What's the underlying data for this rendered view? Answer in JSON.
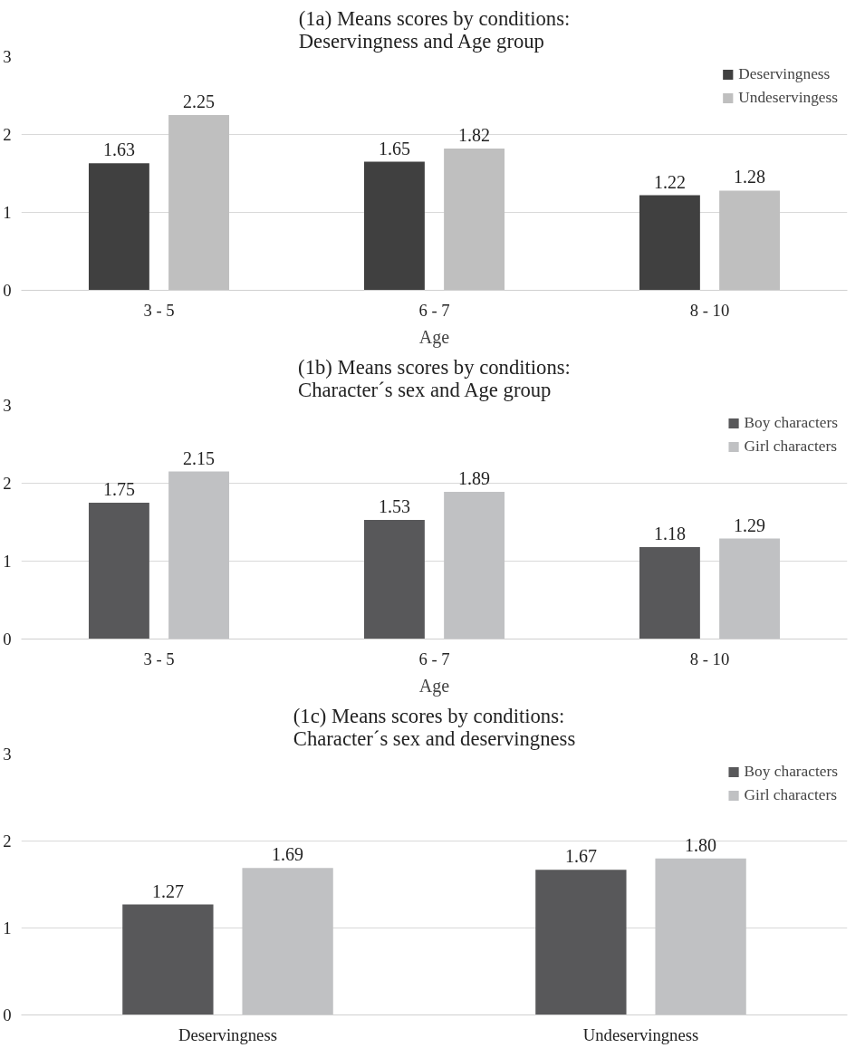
{
  "chart_data": [
    {
      "type": "bar",
      "title": "(1a) Means scores by conditions:\nDeservingness and Age group",
      "xlabel": "Age",
      "categories": [
        "3 - 5",
        "6 - 7",
        "8 - 10"
      ],
      "series": [
        {
          "name": "Deservingness",
          "color": "#404040",
          "values": [
            1.63,
            1.65,
            1.22
          ]
        },
        {
          "name": "Undeservingess",
          "color": "#bfbfbf",
          "values": [
            2.25,
            1.82,
            1.28
          ]
        }
      ],
      "ylim": [
        0,
        3
      ],
      "yticks": [
        0,
        1,
        2,
        3
      ],
      "grid": "y",
      "legend": "top right",
      "data_labels": true
    },
    {
      "type": "bar",
      "title": "(1b) Means scores by conditions:\nCharacter´s sex and Age group",
      "xlabel": "Age",
      "categories": [
        "3 - 5",
        "6 - 7",
        "8 - 10"
      ],
      "series": [
        {
          "name": "Boy characters",
          "color": "#58585a",
          "values": [
            1.75,
            1.53,
            1.18
          ]
        },
        {
          "name": "Girl characters",
          "color": "#c0c1c3",
          "values": [
            2.15,
            1.89,
            1.29
          ]
        }
      ],
      "ylim": [
        0,
        3
      ],
      "yticks": [
        0,
        1,
        2,
        3
      ],
      "grid": "y",
      "legend": "top right",
      "data_labels": true
    },
    {
      "type": "bar",
      "title": "(1c) Means scores by conditions:\nCharacter´s sex and deservingness",
      "categories": [
        "Deservingness",
        "Undeservingness"
      ],
      "series": [
        {
          "name": "Boy characters",
          "color": "#58585a",
          "values": [
            1.27,
            1.67
          ],
          "value_labels": [
            "1.27",
            "1.67"
          ]
        },
        {
          "name": "Girl characters",
          "color": "#c0c1c3",
          "values": [
            1.69,
            1.8
          ],
          "value_labels": [
            "1.69",
            "1.80"
          ]
        }
      ],
      "ylim": [
        0,
        3
      ],
      "yticks": [
        0,
        1,
        2,
        3
      ],
      "grid": "y",
      "legend": "top right"
    }
  ]
}
